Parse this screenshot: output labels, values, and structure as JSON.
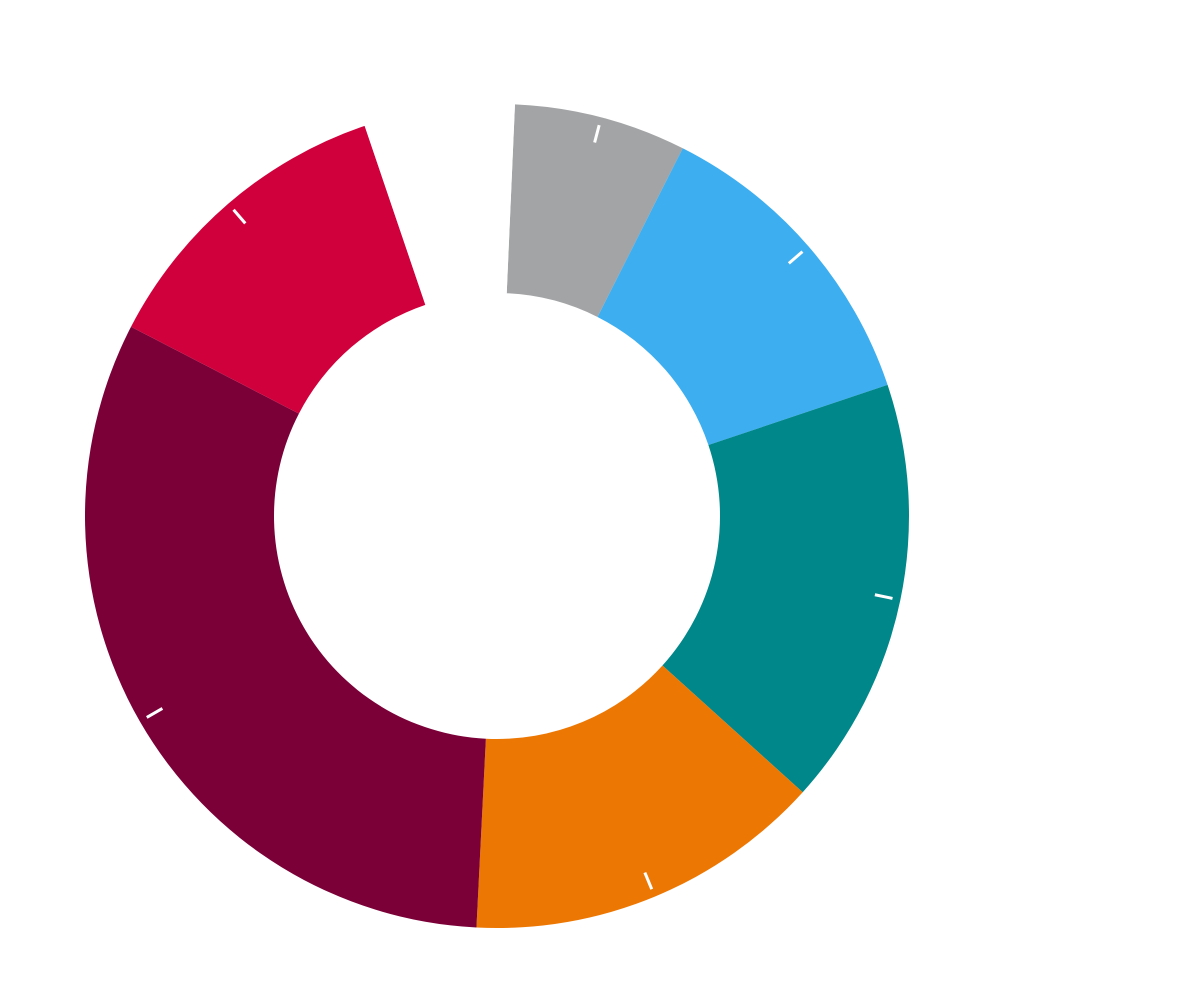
{
  "chart_data": {
    "type": "pie",
    "variant": "donut",
    "title": "",
    "legend": "none",
    "categories": [
      "",
      "",
      "",
      "",
      "",
      "",
      ""
    ],
    "values": [
      6.75,
      12.4,
      16.85,
      14.1,
      31.8,
      12.2,
      5.9
    ],
    "colors": [
      "#a3a4a6",
      "#3daef0",
      "#00878a",
      "#ed7703",
      "#7b0038",
      "#d0003c",
      "#ffffff"
    ],
    "start_angle_deg": 2.5,
    "direction": "clockwise"
  }
}
